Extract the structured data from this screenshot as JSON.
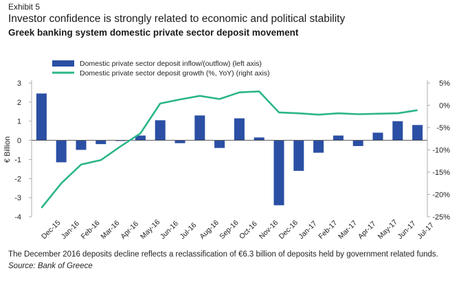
{
  "header": {
    "exhibit": "Exhibit 5",
    "title": "Investor confidence is strongly related to economic and political stability",
    "subtitle": "Greek banking system domestic private sector deposit movement"
  },
  "footer": {
    "note": "The December 2016 deposits decline reflects a reclassification of €6.3 billion of deposits held by government related funds.",
    "source": "Source: Bank of Greece"
  },
  "colors": {
    "bar": "#2a4fa4",
    "line": "#2bb58a",
    "axis": "#999999",
    "text": "#1a1a1a"
  },
  "chart_data": {
    "type": "bar+line",
    "categories": [
      "Dec-15",
      "Jan-16",
      "Feb-16",
      "Mar-16",
      "Apr-16",
      "May-16",
      "Jun-16",
      "Jul-16",
      "Aug-16",
      "Sep-16",
      "Oct-16",
      "Nov-16",
      "Dec-16",
      "Jan-17",
      "Feb-17",
      "Mar-17",
      "Apr-17",
      "May-17",
      "Jun-17",
      "Jul-17"
    ],
    "series": [
      {
        "name": "Domestic private sector deposit inflow/(outflow) (left axis)",
        "type": "bar",
        "axis": "left",
        "values": [
          2.45,
          -1.15,
          -0.5,
          -0.2,
          -0.02,
          0.25,
          1.05,
          -0.15,
          1.3,
          -0.4,
          1.15,
          0.15,
          -3.4,
          -1.6,
          -0.65,
          0.25,
          -0.3,
          0.4,
          1.0,
          0.8
        ]
      },
      {
        "name": "Domestic private sector deposit growth (%, YoY) (right axis)",
        "type": "line",
        "axis": "right",
        "values": [
          -23.0,
          -17.5,
          -13.3,
          -12.3,
          -9.2,
          -6.3,
          0.4,
          1.3,
          2.1,
          1.4,
          2.9,
          3.1,
          -1.6,
          -1.8,
          -2.1,
          -1.8,
          -2.0,
          -1.9,
          -1.8,
          -1.1
        ]
      }
    ],
    "ylabel": "€ Billion",
    "left_axis": {
      "min": -4,
      "max": 3,
      "ticks": [
        "-4",
        "-3",
        "-2",
        "-1",
        "0",
        "1",
        "2",
        "3"
      ]
    },
    "right_axis": {
      "min": -25,
      "max": 5,
      "ticks": [
        "-25%",
        "-20%",
        "-15%",
        "-10%",
        "-5%",
        "0%",
        "5%"
      ]
    }
  }
}
